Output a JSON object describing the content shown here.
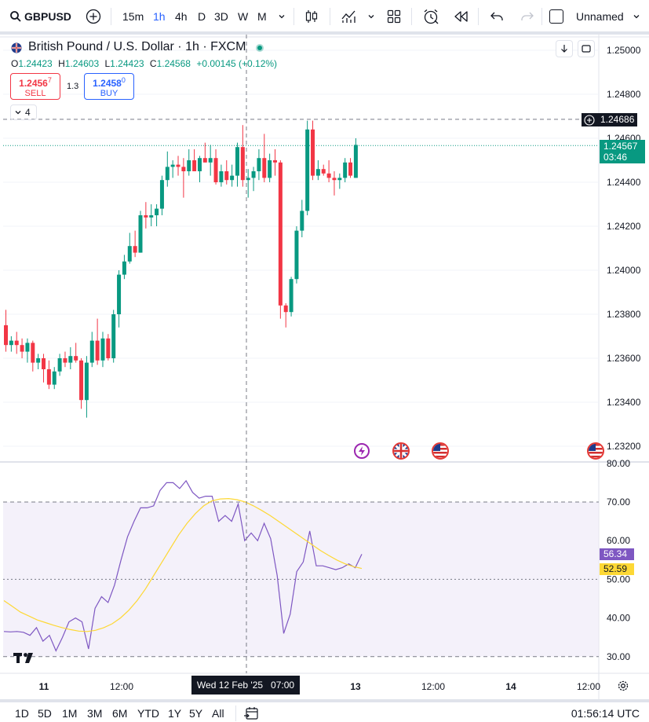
{
  "toolbar": {
    "symbol": "GBPUSD",
    "intervals": [
      "15m",
      "1h",
      "4h",
      "D",
      "3D",
      "W",
      "M"
    ],
    "active_interval": "1h",
    "layout_name": "Unnamed"
  },
  "legend": {
    "title": "British Pound / U.S. Dollar · 1h · FXCM",
    "open_label": "O",
    "open": "1.24423",
    "high_label": "H",
    "high": "1.24603",
    "low_label": "L",
    "low": "1.24423",
    "close_label": "C",
    "close": "1.24568",
    "change": "+0.00145 (+0.12%)",
    "sell_price_main": "1.2456",
    "sell_price_sup": "7",
    "sell_label": "SELL",
    "spread": "1.3",
    "buy_price_main": "1.2458",
    "buy_price_sup": "0",
    "buy_label": "BUY",
    "indicator_count": "4"
  },
  "price_axis": {
    "ticks": [
      "1.25000",
      "1.24800",
      "1.24600",
      "1.24400",
      "1.24200",
      "1.24000",
      "1.23800",
      "1.23600",
      "1.23400",
      "1.23200"
    ],
    "crosshair_price": "1.24686",
    "last_price": "1.24567",
    "countdown": "03:46"
  },
  "rsi_axis": {
    "ticks": [
      "80.00",
      "70.00",
      "60.00",
      "50.00",
      "40.00",
      "30.00"
    ],
    "rsi_value": "56.34",
    "ma_value": "52.59"
  },
  "time_axis": {
    "labels": [
      "11",
      "12:00",
      "13",
      "12:00",
      "14",
      "12:00"
    ],
    "crosshair_time": "Wed 12 Feb '25   07:00"
  },
  "bottom_bar": {
    "ranges": [
      "1D",
      "5D",
      "1M",
      "3M",
      "6M",
      "YTD",
      "1Y",
      "5Y",
      "All"
    ],
    "clock": "01:56:14 UTC"
  },
  "colors": {
    "up": "#089981",
    "down": "#f23645",
    "rsi_line": "#7e57c2",
    "rsi_ma": "#fdd835",
    "rsi_band": "#ede7f6",
    "accent": "#2962ff"
  },
  "chart_data": [
    {
      "type": "candlestick",
      "title": "British Pound / U.S. Dollar · 1h · FXCM",
      "ylim": [
        1.2312,
        1.2507
      ],
      "candles": [
        {
          "o": 1.2375,
          "h": 1.2382,
          "l": 1.2363,
          "c": 1.2366
        },
        {
          "o": 1.2366,
          "h": 1.237,
          "l": 1.2363,
          "c": 1.2368
        },
        {
          "o": 1.2368,
          "h": 1.2372,
          "l": 1.2362,
          "c": 1.2366
        },
        {
          "o": 1.2366,
          "h": 1.2369,
          "l": 1.236,
          "c": 1.2363
        },
        {
          "o": 1.2363,
          "h": 1.2369,
          "l": 1.2358,
          "c": 1.2367
        },
        {
          "o": 1.2367,
          "h": 1.2368,
          "l": 1.2354,
          "c": 1.2358
        },
        {
          "o": 1.2358,
          "h": 1.2362,
          "l": 1.2355,
          "c": 1.236
        },
        {
          "o": 1.236,
          "h": 1.2362,
          "l": 1.2349,
          "c": 1.2355
        },
        {
          "o": 1.2355,
          "h": 1.2359,
          "l": 1.2346,
          "c": 1.2348
        },
        {
          "o": 1.2348,
          "h": 1.2356,
          "l": 1.2346,
          "c": 1.2354
        },
        {
          "o": 1.2354,
          "h": 1.2362,
          "l": 1.2352,
          "c": 1.236
        },
        {
          "o": 1.236,
          "h": 1.2363,
          "l": 1.2356,
          "c": 1.2358
        },
        {
          "o": 1.2358,
          "h": 1.2365,
          "l": 1.2355,
          "c": 1.2361
        },
        {
          "o": 1.2361,
          "h": 1.2367,
          "l": 1.2358,
          "c": 1.2359
        },
        {
          "o": 1.2359,
          "h": 1.236,
          "l": 1.2337,
          "c": 1.2341
        },
        {
          "o": 1.2341,
          "h": 1.2361,
          "l": 1.2333,
          "c": 1.2358
        },
        {
          "o": 1.2358,
          "h": 1.2372,
          "l": 1.2356,
          "c": 1.2368
        },
        {
          "o": 1.2368,
          "h": 1.2378,
          "l": 1.2357,
          "c": 1.2359
        },
        {
          "o": 1.2359,
          "h": 1.2372,
          "l": 1.2356,
          "c": 1.2369
        },
        {
          "o": 1.2369,
          "h": 1.2371,
          "l": 1.2359,
          "c": 1.236
        },
        {
          "o": 1.236,
          "h": 1.2382,
          "l": 1.2358,
          "c": 1.238
        },
        {
          "o": 1.238,
          "h": 1.24,
          "l": 1.2374,
          "c": 1.2398
        },
        {
          "o": 1.2398,
          "h": 1.2407,
          "l": 1.2396,
          "c": 1.2404
        },
        {
          "o": 1.2404,
          "h": 1.2417,
          "l": 1.2403,
          "c": 1.2411
        },
        {
          "o": 1.2411,
          "h": 1.2418,
          "l": 1.2406,
          "c": 1.2408
        },
        {
          "o": 1.2408,
          "h": 1.2427,
          "l": 1.2408,
          "c": 1.2425
        },
        {
          "o": 1.2425,
          "h": 1.2431,
          "l": 1.2419,
          "c": 1.2424
        },
        {
          "o": 1.2424,
          "h": 1.243,
          "l": 1.242,
          "c": 1.2425
        },
        {
          "o": 1.2425,
          "h": 1.243,
          "l": 1.242,
          "c": 1.2428
        },
        {
          "o": 1.2428,
          "h": 1.2443,
          "l": 1.2425,
          "c": 1.2441
        },
        {
          "o": 1.2441,
          "h": 1.2454,
          "l": 1.2438,
          "c": 1.2447
        },
        {
          "o": 1.2447,
          "h": 1.245,
          "l": 1.2442,
          "c": 1.2448
        },
        {
          "o": 1.2448,
          "h": 1.2452,
          "l": 1.2443,
          "c": 1.2447
        },
        {
          "o": 1.2447,
          "h": 1.2451,
          "l": 1.2433,
          "c": 1.2445
        },
        {
          "o": 1.2445,
          "h": 1.2455,
          "l": 1.2443,
          "c": 1.245
        },
        {
          "o": 1.245,
          "h": 1.2455,
          "l": 1.2445,
          "c": 1.2445
        },
        {
          "o": 1.2445,
          "h": 1.2452,
          "l": 1.244,
          "c": 1.2451
        },
        {
          "o": 1.2451,
          "h": 1.2458,
          "l": 1.2449,
          "c": 1.2449
        },
        {
          "o": 1.2449,
          "h": 1.2457,
          "l": 1.2443,
          "c": 1.2451
        },
        {
          "o": 1.2451,
          "h": 1.2455,
          "l": 1.2439,
          "c": 1.244
        },
        {
          "o": 1.244,
          "h": 1.2448,
          "l": 1.2438,
          "c": 1.2445
        },
        {
          "o": 1.2445,
          "h": 1.245,
          "l": 1.2439,
          "c": 1.2441
        },
        {
          "o": 1.2441,
          "h": 1.2448,
          "l": 1.2438,
          "c": 1.2443
        },
        {
          "o": 1.2443,
          "h": 1.2458,
          "l": 1.2438,
          "c": 1.2456
        },
        {
          "o": 1.2456,
          "h": 1.2466,
          "l": 1.2438,
          "c": 1.2441
        },
        {
          "o": 1.2441,
          "h": 1.2446,
          "l": 1.2433,
          "c": 1.2442
        },
        {
          "o": 1.2442,
          "h": 1.2447,
          "l": 1.2436,
          "c": 1.2445
        },
        {
          "o": 1.2445,
          "h": 1.2455,
          "l": 1.2441,
          "c": 1.2451
        },
        {
          "o": 1.2451,
          "h": 1.2462,
          "l": 1.244,
          "c": 1.2442
        },
        {
          "o": 1.2442,
          "h": 1.2453,
          "l": 1.244,
          "c": 1.245
        },
        {
          "o": 1.245,
          "h": 1.2455,
          "l": 1.2443,
          "c": 1.2449
        },
        {
          "o": 1.2449,
          "h": 1.245,
          "l": 1.2378,
          "c": 1.2384
        },
        {
          "o": 1.2384,
          "h": 1.2385,
          "l": 1.2374,
          "c": 1.2381
        },
        {
          "o": 1.2381,
          "h": 1.2397,
          "l": 1.2379,
          "c": 1.2396
        },
        {
          "o": 1.2396,
          "h": 1.242,
          "l": 1.2394,
          "c": 1.2418
        },
        {
          "o": 1.2418,
          "h": 1.2432,
          "l": 1.2415,
          "c": 1.2427
        },
        {
          "o": 1.2427,
          "h": 1.2468,
          "l": 1.2425,
          "c": 1.2464
        },
        {
          "o": 1.2464,
          "h": 1.2468,
          "l": 1.2441,
          "c": 1.2443
        },
        {
          "o": 1.2443,
          "h": 1.245,
          "l": 1.2441,
          "c": 1.2446
        },
        {
          "o": 1.2446,
          "h": 1.2448,
          "l": 1.2443,
          "c": 1.2444
        },
        {
          "o": 1.2444,
          "h": 1.245,
          "l": 1.244,
          "c": 1.2442
        },
        {
          "o": 1.2442,
          "h": 1.2445,
          "l": 1.2434,
          "c": 1.2441
        },
        {
          "o": 1.2441,
          "h": 1.2444,
          "l": 1.2437,
          "c": 1.2442
        },
        {
          "o": 1.2442,
          "h": 1.2451,
          "l": 1.244,
          "c": 1.2449
        },
        {
          "o": 1.2449,
          "h": 1.2451,
          "l": 1.2442,
          "c": 1.2443
        },
        {
          "o": 1.2442,
          "h": 1.246,
          "l": 1.2442,
          "c": 1.2457
        }
      ]
    },
    {
      "type": "line",
      "ylim": [
        28,
        81
      ],
      "bands": [
        30,
        50,
        70
      ],
      "series": [
        {
          "values": [
            36.5,
            36.4,
            36.5,
            36.3,
            35.5,
            37.5,
            34.0,
            35.5,
            31.5,
            35.0,
            39.0,
            40.0,
            39.0,
            32.0,
            42.5,
            45.5,
            44.0,
            48.5,
            55.0,
            61.0,
            65.0,
            68.5,
            68.5,
            69.0,
            73.0,
            75.0,
            75.0,
            73.5,
            75.5,
            72.5,
            71.0,
            71.5,
            71.5,
            65.0,
            66.5,
            65.0,
            69.5,
            60.0,
            62.0,
            60.0,
            64.5,
            60.5,
            51.0,
            36.0,
            41.0,
            52.0,
            54.5,
            62.5,
            53.5,
            53.5,
            53.0,
            52.5,
            53.0,
            54.0,
            53.0,
            56.5
          ]
        },
        {
          "values": [
            44.5,
            43.0,
            41.5,
            40.5,
            39.5,
            38.8,
            38.1,
            37.5,
            37.0,
            36.6,
            36.5,
            36.8,
            37.5,
            38.5,
            40.0,
            42.0,
            44.5,
            47.5,
            51.0,
            54.5,
            58.0,
            61.5,
            64.5,
            67.0,
            69.0,
            70.3,
            70.8,
            70.9,
            70.6,
            70.0,
            69.0,
            67.8,
            66.5,
            65.0,
            63.5,
            62.0,
            60.5,
            59.0,
            57.5,
            56.2,
            55.0,
            54.0,
            53.3,
            52.8
          ]
        }
      ]
    }
  ]
}
